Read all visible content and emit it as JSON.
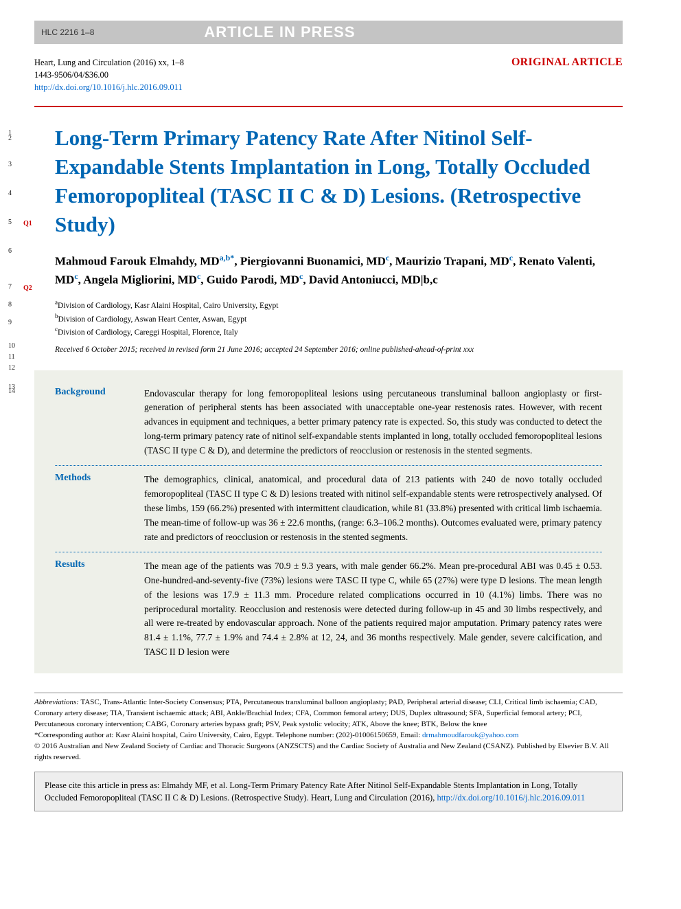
{
  "banner": {
    "hlc_code": "HLC 2216 1–8",
    "aip": "ARTICLE IN PRESS"
  },
  "meta": {
    "journal_line": "Heart, Lung and Circulation (2016) xx, 1–8",
    "issn_line": "1443-9506/04/$36.00",
    "doi": "http://dx.doi.org/10.1016/j.hlc.2016.09.011",
    "article_type": "ORIGINAL ARTICLE"
  },
  "title": "Long-Term Primary Patency Rate After Nitinol Self-Expandable Stents Implantation in Long, Totally Occluded Femoropopliteal (TASC II C & D) Lesions. (Retrospective Study)",
  "authors_html": "Mahmoud Farouk Elmahdy, MD|a,b*|, Piergiovanni Buonamici, MD|c|, Maurizio Trapani, MD|c|, Renato Valenti, MD|c|, Angela Migliorini, MD|c|, Guido Parodi, MD|c|, David Antoniucci, MD|b,c",
  "affiliations": [
    {
      "sup": "a",
      "text": "Division of Cardiology, Kasr Alaini Hospital, Cairo University, Egypt"
    },
    {
      "sup": "b",
      "text": "Division of Cardiology, Aswan Heart Center, Aswan, Egypt"
    },
    {
      "sup": "c",
      "text": "Division of Cardiology, Careggi Hospital, Florence, Italy"
    }
  ],
  "received": "Received 6 October 2015; received in revised form 21 June 2016; accepted 24 September 2016; online published-ahead-of-print xxx",
  "abstract": {
    "background": {
      "label": "Background",
      "text": "Endovascular therapy for long femoropopliteal lesions using percutaneous transluminal balloon angioplasty or first-generation of peripheral stents has been associated with unacceptable one-year restenosis rates. However, with recent advances in equipment and techniques, a better primary patency rate is expected. So, this study was conducted to detect the long-term primary patency rate of nitinol self-expandable stents implanted in long, totally occluded femoropopliteal lesions (TASC II type C & D), and determine the predictors of reocclusion or restenosis in the stented segments."
    },
    "methods": {
      "label": "Methods",
      "text": "The demographics, clinical, anatomical, and procedural data of 213 patients with 240 de novo totally occluded femoropopliteal (TASC II type C & D) lesions treated with nitinol self-expandable stents were retrospectively analysed. Of these limbs, 159 (66.2%) presented with intermittent claudication, while 81 (33.8%) presented with critical limb ischaemia. The mean-time of follow-up was 36 ± 22.6 months, (range: 6.3–106.2 months). Outcomes evaluated were, primary patency rate and predictors of reocclusion or restenosis in the stented segments."
    },
    "results": {
      "label": "Results",
      "text": "The mean age of the patients was 70.9 ± 9.3 years, with male gender 66.2%. Mean pre-procedural ABI was 0.45 ± 0.53. One-hundred-and-seventy-five (73%) lesions were TASC II type C, while 65 (27%) were type D lesions. The mean length of the lesions was 17.9 ± 11.3 mm. Procedure related complications occurred in 10 (4.1%) limbs. There was no periprocedural mortality. Reocclusion and restenosis were detected during follow-up in 45 and 30 limbs respectively, and all were re-treated by endovascular approach. None of the patients required major amputation. Primary patency rates were 81.4 ± 1.1%, 77.7 ± 1.9% and 74.4 ± 2.8% at 12, 24, and 36 months respectively. Male gender, severe calcification, and TASC II D lesion were"
    }
  },
  "footnotes": {
    "abbrev_label": "Abbreviations:",
    "abbrev_text": " TASC, Trans-Atlantic Inter-Society Consensus; PTA, Percutaneous transluminal balloon angioplasty; PAD, Peripheral arterial disease; CLI, Critical limb ischaemia; CAD, Coronary artery disease; TIA, Transient ischaemic attack; ABI, Ankle/Brachial Index; CFA, Common femoral artery; DUS, Duplex ultrasound; SFA, Superficial femoral artery; PCI, Percutaneous coronary intervention; CABG, Coronary arteries bypass graft; PSV, Peak systolic velocity; ATK, Above the knee; BTK, Below the knee",
    "corr_text": "*Corresponding author at: Kasr Alaini hospital, Cairo University, Cairo, Egypt. Telephone number: (202)-01006150659, Email: ",
    "corr_email": "drmahmoudfarouk@yahoo.com",
    "copyright": "© 2016 Australian and New Zealand Society of Cardiac and Thoracic Surgeons (ANZSCTS) and the Cardiac Society of Australia and New Zealand (CSANZ). Published by Elsevier B.V. All rights reserved."
  },
  "cite_box": {
    "prefix": "Please cite this article in press as: Elmahdy MF, et al. Long-Term Primary Patency Rate After Nitinol Self-Expandable Stents Implantation in Long, Totally Occluded Femoropopliteal (TASC II C & D) Lesions. (Retrospective Study). Heart, Lung and Circulation (2016), ",
    "doi": "http://dx.doi.org/10.1016/j.hlc.2016.09.011"
  },
  "line_numbers": [
    "1",
    "2",
    "3",
    "4",
    "5",
    "6",
    "7",
    "8",
    "9",
    "10",
    "11",
    "12",
    "13",
    "14"
  ],
  "q_markers": {
    "q1": "Q1",
    "q2": "Q2"
  },
  "colors": {
    "brand_blue": "#0066b3",
    "link_blue": "#0066cc",
    "brand_red": "#cc0000",
    "banner_gray": "#c4c4c4",
    "abstract_bg": "#eef0e9",
    "cite_bg": "#eeeeee"
  }
}
